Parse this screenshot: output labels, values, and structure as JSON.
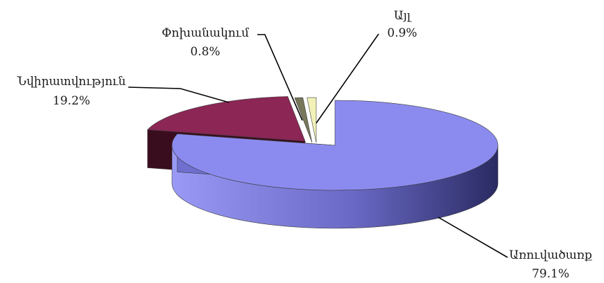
{
  "chart_data": {
    "type": "pie",
    "title": "",
    "categories": [
      "Առուվածառք",
      "Նվիրատվություն",
      "Փոխանակում",
      "Այլ"
    ],
    "values": [
      79.1,
      19.2,
      0.8,
      0.9
    ],
    "value_labels": [
      "79.1%",
      "19.2%",
      "0.8%",
      "0.9%"
    ],
    "colors": [
      "#8b8bef",
      "#8b2655",
      "#77775a",
      "#f2f2b8",
      "#c4ecf4"
    ],
    "style": "3d-exploded",
    "legend": "none"
  }
}
